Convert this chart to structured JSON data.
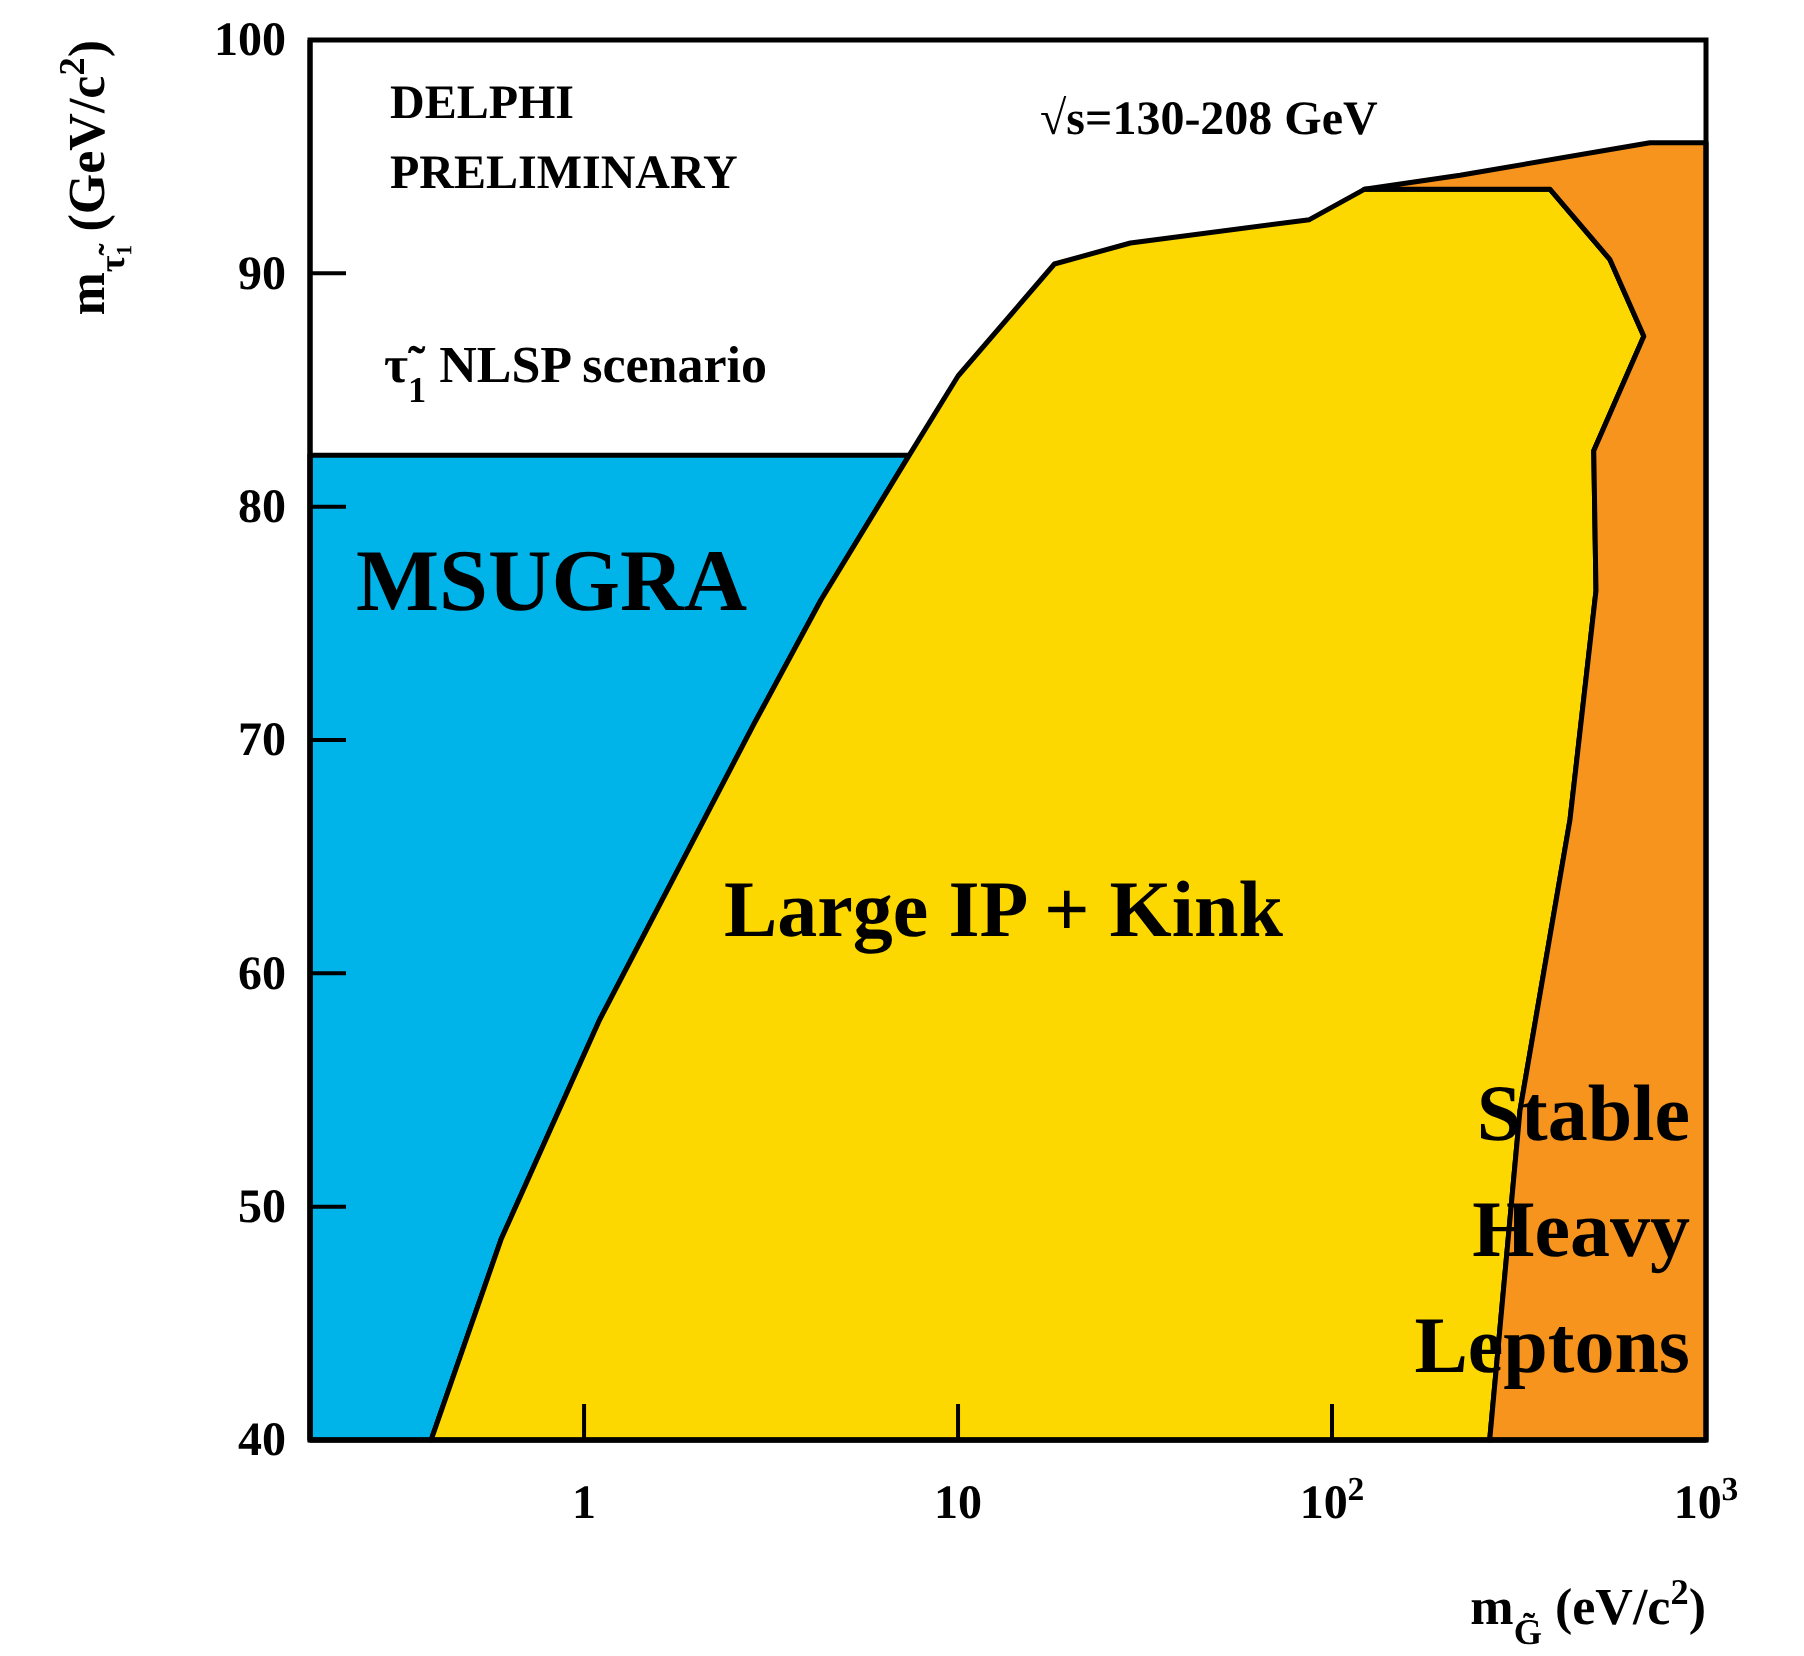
{
  "chart_data": {
    "type": "area",
    "xlabel": "m$_{G̃}$ (eV/c$^{2}$)",
    "ylabel": "m$_{τ̃₁}$ (GeV/c$^{2}$)",
    "log": "x",
    "xlim": [
      0.185,
      1000
    ],
    "xticks": [
      1,
      10,
      {
        "value": 100,
        "label": "10$^{2}$"
      },
      {
        "value": 1000,
        "label": "10$^{3}$"
      }
    ],
    "ylim": [
      40,
      100
    ],
    "yticks": [
      40,
      50,
      60,
      70,
      80,
      90,
      100
    ],
    "grid": false,
    "series": [
      {
        "color": "#00b4ea",
        "x": [
          0.185,
          0.185,
          7.4,
          4.3,
          2.85,
          1.1,
          0.6,
          0.39
        ],
        "values": [
          40,
          82.2,
          82.2,
          76,
          70.7,
          58,
          48.6,
          40
        ]
      },
      {
        "color": "#fcd800",
        "x": [
          0.39,
          0.6,
          1.1,
          2.85,
          4.3,
          7.4,
          10,
          18.1,
          28.9,
          87,
          122,
          383,
          553,
          682,
          501,
          508,
          433,
          318,
          264
        ],
        "values": [
          40,
          48.6,
          58,
          70.7,
          76,
          82.2,
          85.6,
          90.4,
          91.3,
          92.3,
          93.6,
          93.6,
          90.6,
          87.3,
          82.4,
          76.4,
          66.6,
          54.1,
          40
        ]
      },
      {
        "color": "#f7941d",
        "x": [
          264,
          318,
          433,
          508,
          501,
          682,
          553,
          383,
          122,
          220,
          708,
          1000,
          1000
        ],
        "values": [
          40,
          54.1,
          66.6,
          76.4,
          82.4,
          87.3,
          90.6,
          93.6,
          93.6,
          94.2,
          95.6,
          95.6,
          40
        ]
      }
    ],
    "annotations": [
      "DELPHI\nPRELIMINARY",
      "√s=130-208 GeV",
      "τ̃$_{1}$ NLSP scenario",
      "MSUGRA",
      "Large IP + Kink",
      "Stable\nHeavy\nLeptons"
    ]
  }
}
